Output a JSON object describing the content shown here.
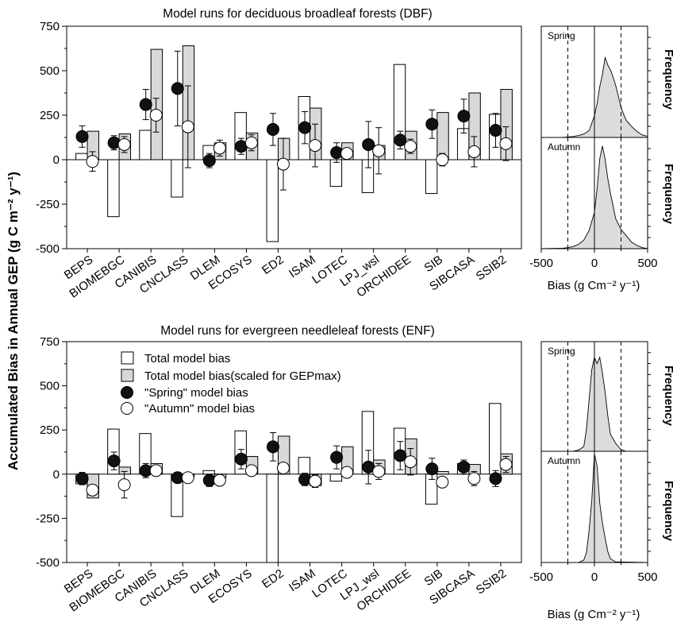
{
  "figure": {
    "ylabel": "Accumulated Bias in Annual GEP (g C m⁻² y⁻¹)",
    "hist_ylabel": "Frequency",
    "hist_xlabel": "Bias (g Cm⁻² y⁻¹)"
  },
  "legend": {
    "total": "Total model bias",
    "scaled": "Total model bias(scaled for GEPmax)",
    "spring": "\"Spring\" model bias",
    "autumn": "\"Autumn\" model bias"
  },
  "colors": {
    "scaled_fill": "#d8d8d8",
    "spring_marker": "#111111",
    "autumn_marker": "#ffffff",
    "hist_fill": "#dcdcdc"
  },
  "chart_data": [
    {
      "type": "bar",
      "title": "Model runs for deciduous broadleaf forests (DBF)",
      "ylim": [
        -500,
        750
      ],
      "yticks": [
        "-500",
        "-250",
        "0",
        "250",
        "500",
        "750"
      ],
      "categories": [
        "BEPS",
        "BIOMEBGC",
        "CANIBIS",
        "CNCLASS",
        "DLEM",
        "ECOSYS",
        "ED2",
        "ISAM",
        "LOTEC",
        "LPJ_wsl",
        "ORCHIDEE",
        "SIB",
        "SIBCASA",
        "SSIB2"
      ],
      "series": [
        {
          "name": "Total model bias",
          "kind": "bar",
          "values": [
            35,
            -320,
            165,
            -210,
            80,
            265,
            -460,
            355,
            -150,
            -185,
            535,
            -190,
            175,
            255
          ]
        },
        {
          "name": "Total model bias(scaled for GEPmax)",
          "kind": "bar",
          "values": [
            160,
            145,
            620,
            640,
            95,
            150,
            120,
            290,
            95,
            80,
            160,
            265,
            375,
            395
          ]
        },
        {
          "name": "\"Spring\" model bias",
          "kind": "point",
          "values": [
            130,
            95,
            310,
            400,
            -5,
            75,
            170,
            180,
            40,
            85,
            110,
            200,
            245,
            165
          ],
          "err": [
            60,
            40,
            85,
            210,
            40,
            45,
            90,
            90,
            55,
            130,
            50,
            80,
            95,
            95
          ]
        },
        {
          "name": "\"Autumn\" model bias",
          "kind": "point",
          "values": [
            -10,
            85,
            250,
            185,
            65,
            95,
            -25,
            80,
            35,
            50,
            75,
            0,
            45,
            90
          ],
          "err": [
            55,
            45,
            95,
            230,
            45,
            45,
            145,
            120,
            30,
            130,
            40,
            35,
            85,
            95
          ]
        }
      ]
    },
    {
      "type": "bar",
      "title": "Model runs for evergreen needleleaf forests (ENF)",
      "ylim": [
        -500,
        750
      ],
      "yticks": [
        "-500",
        "-250",
        "0",
        "250",
        "500",
        "750"
      ],
      "categories": [
        "BEPS",
        "BIOMEBGC",
        "CANIBIS",
        "CNCLASS",
        "DLEM",
        "ECOSYS",
        "ED2",
        "ISAM",
        "LOTEC",
        "LPJ_wsl",
        "ORCHIDEE",
        "SIB",
        "SIBCASA",
        "SSIB2"
      ],
      "series": [
        {
          "name": "Total model bias",
          "kind": "bar",
          "values": [
            -55,
            255,
            230,
            -240,
            20,
            245,
            -500,
            95,
            -40,
            355,
            260,
            -170,
            60,
            400
          ]
        },
        {
          "name": "Total model bias(scaled for GEPmax)",
          "kind": "bar",
          "values": [
            -135,
            40,
            60,
            -15,
            -20,
            100,
            215,
            -65,
            155,
            80,
            200,
            15,
            55,
            115
          ]
        },
        {
          "name": "\"Spring\" model bias",
          "kind": "point",
          "values": [
            -25,
            75,
            20,
            -20,
            -35,
            85,
            155,
            -30,
            95,
            40,
            105,
            30,
            40,
            -25
          ],
          "err": [
            35,
            50,
            40,
            30,
            35,
            55,
            80,
            35,
            65,
            95,
            80,
            60,
            40,
            45
          ]
        },
        {
          "name": "\"Autumn\" model bias",
          "kind": "point",
          "values": [
            -90,
            -60,
            20,
            -20,
            -35,
            20,
            35,
            -40,
            10,
            15,
            70,
            -45,
            -25,
            55
          ],
          "err": [
            30,
            75,
            30,
            15,
            25,
            25,
            20,
            35,
            20,
            45,
            75,
            30,
            40,
            45
          ]
        }
      ]
    },
    {
      "type": "area",
      "panel": "DBF",
      "label": "Spring",
      "xlim": [
        -500,
        500
      ],
      "xticks": [
        "-500",
        "0",
        "500"
      ],
      "dashed_lines": [
        -250,
        250
      ],
      "x": [
        -500,
        -300,
        -250,
        -200,
        -150,
        -100,
        -50,
        0,
        25,
        50,
        75,
        100,
        125,
        150,
        175,
        200,
        225,
        250,
        275,
        300,
        350,
        400,
        450,
        500
      ],
      "y": [
        0,
        0,
        2,
        4,
        8,
        14,
        28,
        90,
        140,
        210,
        260,
        330,
        300,
        280,
        250,
        215,
        170,
        125,
        95,
        70,
        45,
        25,
        10,
        5
      ]
    },
    {
      "type": "area",
      "panel": "DBF",
      "label": "Autumn",
      "xlim": [
        -500,
        500
      ],
      "xticks": [
        "-500",
        "0",
        "500"
      ],
      "dashed_lines": [
        -250,
        250
      ],
      "x": [
        -500,
        -300,
        -250,
        -200,
        -150,
        -100,
        -50,
        0,
        25,
        50,
        75,
        100,
        125,
        150,
        175,
        200,
        250,
        300,
        350,
        400,
        450,
        500
      ],
      "y": [
        0,
        2,
        5,
        10,
        20,
        40,
        85,
        170,
        280,
        420,
        480,
        420,
        330,
        260,
        200,
        140,
        90,
        60,
        30,
        15,
        5,
        0
      ]
    },
    {
      "type": "area",
      "panel": "ENF",
      "label": "Spring",
      "xlim": [
        -500,
        500
      ],
      "xticks": [
        "-500",
        "0",
        "500"
      ],
      "dashed_lines": [
        -250,
        250
      ],
      "x": [
        -500,
        -200,
        -150,
        -100,
        -75,
        -50,
        -25,
        0,
        25,
        50,
        75,
        100,
        125,
        150,
        200,
        250,
        300,
        500
      ],
      "y": [
        0,
        0,
        8,
        30,
        140,
        330,
        520,
        600,
        560,
        600,
        500,
        380,
        230,
        110,
        50,
        10,
        0,
        0
      ]
    },
    {
      "type": "area",
      "panel": "ENF",
      "label": "Autumn",
      "xlim": [
        -500,
        500
      ],
      "xticks": [
        "-500",
        "0",
        "500"
      ],
      "dashed_lines": [
        -250,
        250
      ],
      "x": [
        -500,
        -150,
        -100,
        -75,
        -50,
        -25,
        0,
        25,
        50,
        75,
        100,
        125,
        150,
        200,
        500
      ],
      "y": [
        0,
        0,
        20,
        80,
        260,
        500,
        880,
        780,
        480,
        320,
        200,
        90,
        30,
        5,
        0
      ]
    }
  ]
}
